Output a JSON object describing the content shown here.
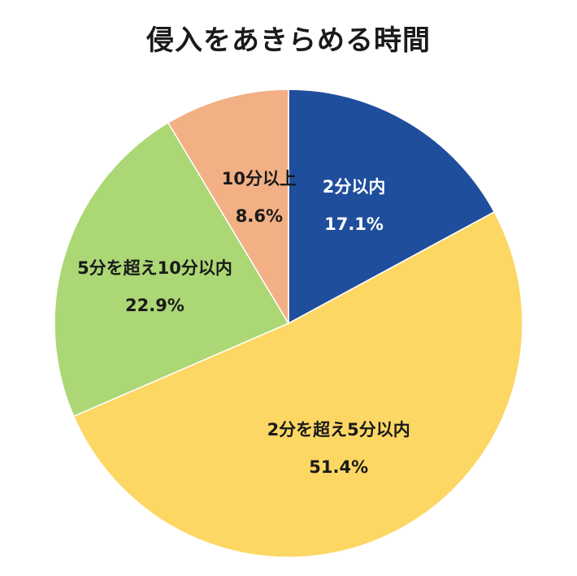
{
  "chart_data": {
    "type": "pie",
    "title": "侵入をあきらめる時間",
    "slices": [
      {
        "label": "2分以内",
        "value": 17.1,
        "value_label": "17.1%",
        "color": "#1f4e9c",
        "text_color": "#ffffff"
      },
      {
        "label": "2分を超え5分以内",
        "value": 51.4,
        "value_label": "51.4%",
        "color": "#fdd764",
        "text_color": "#1a1a1a"
      },
      {
        "label": "5分を超え10分以内",
        "value": 22.9,
        "value_label": "22.9%",
        "color": "#acd775",
        "text_color": "#1a1a1a"
      },
      {
        "label": "10分以上",
        "value": 8.6,
        "value_label": "8.6%",
        "color": "#f2b084",
        "text_color": "#1a1a1a"
      }
    ],
    "start": "top",
    "direction": "clockwise",
    "legend": "none"
  }
}
